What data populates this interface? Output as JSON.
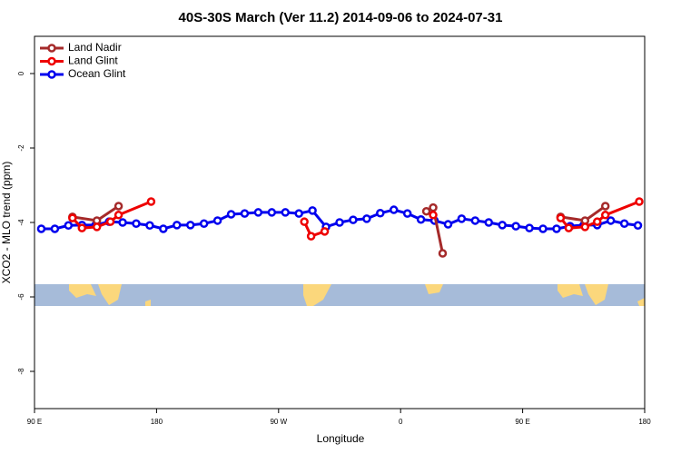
{
  "chart_data": {
    "type": "line",
    "title": "40S-30S March (Ver 11.2)   2014-09-06 to 2024-07-31",
    "xlabel": "Longitude",
    "ylabel": "XCO2 - MLO trend (ppm)",
    "xlim": [
      90,
      540
    ],
    "ylim": [
      -9,
      1
    ],
    "xticks": [
      {
        "value": 90,
        "label": "90 E"
      },
      180,
      {
        "value": 270,
        "label": "90 W"
      },
      {
        "value": 360,
        "label": "0"
      },
      {
        "value": 450,
        "label": "90 E"
      },
      {
        "value": 540,
        "label": "180"
      }
    ],
    "yticks": [
      0,
      -2,
      -4,
      -6,
      -8
    ],
    "legend": "top-left",
    "series": [
      {
        "name": "Land Nadir",
        "color": "#a52a2a",
        "x": [
          118,
          136,
          152,
          null,
          379,
          384,
          391,
          null,
          478,
          496,
          511
        ],
        "values": [
          -3.85,
          -3.95,
          -3.56,
          null,
          -3.7,
          -3.6,
          -4.83,
          null,
          -3.85,
          -3.95,
          -3.56
        ]
      },
      {
        "name": "Land Glint",
        "color": "#ee0000",
        "x": [
          118,
          125,
          136,
          146,
          152,
          176,
          null,
          289,
          294,
          304,
          null,
          384,
          null,
          478,
          484,
          496,
          505,
          511,
          536
        ],
        "values": [
          -3.88,
          -4.15,
          -4.12,
          -3.98,
          -3.8,
          -3.44,
          null,
          -3.98,
          -4.37,
          -4.24,
          null,
          -3.8,
          null,
          -3.88,
          -4.15,
          -4.12,
          -3.98,
          -3.8,
          -3.44
        ]
      },
      {
        "name": "Ocean Glint",
        "color": "#0000ee",
        "x": [
          95,
          105,
          115,
          125,
          135,
          145,
          155,
          165,
          175,
          185,
          195,
          205,
          215,
          225,
          235,
          245,
          255,
          265,
          275,
          285,
          295,
          305,
          315,
          325,
          335,
          345,
          355,
          365,
          375,
          385,
          395,
          405,
          415,
          425,
          435,
          445,
          455,
          465,
          475,
          485,
          495,
          505,
          515,
          525,
          535
        ],
        "values": [
          -4.17,
          -4.17,
          -4.08,
          -4.07,
          -4.07,
          -3.98,
          -4.0,
          -4.03,
          -4.08,
          -4.17,
          -4.07,
          -4.07,
          -4.03,
          -3.95,
          -3.78,
          -3.76,
          -3.73,
          -3.73,
          -3.73,
          -3.76,
          -3.68,
          -4.12,
          -4.0,
          -3.93,
          -3.9,
          -3.75,
          -3.66,
          -3.76,
          -3.92,
          -3.95,
          -4.05,
          -3.9,
          -3.95,
          -4.0,
          -4.07,
          -4.1,
          -4.15,
          -4.17,
          -4.17,
          -4.1,
          -4.07,
          -4.07,
          -3.95,
          -4.03,
          -4.08
        ]
      }
    ]
  }
}
